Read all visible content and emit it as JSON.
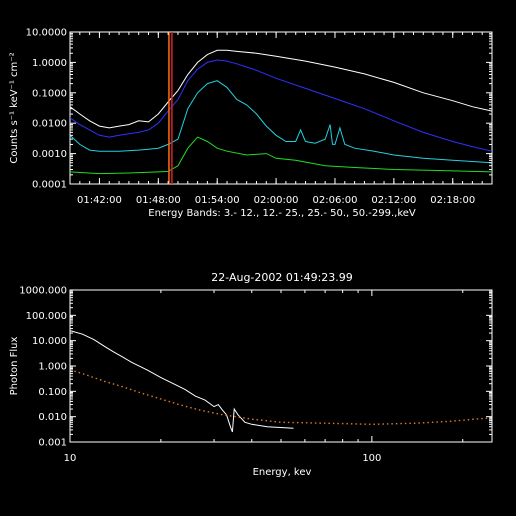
{
  "chart_data": [
    {
      "type": "line",
      "title": "",
      "xlabel": "Energy Bands:  3.- 12., 12.- 25., 25.- 50., 50.-299.,keV",
      "ylabel": "Counts s⁻¹ keV⁻¹ cm⁻²",
      "yscale": "log",
      "ylim": [
        0.0001,
        10
      ],
      "xlim": [
        "01:39:00",
        "02:22:00"
      ],
      "grid": false,
      "x_ticks": [
        "01:42:00",
        "01:48:00",
        "01:54:00",
        "02:00:00",
        "02:06:00",
        "02:12:00",
        "02:18:00"
      ],
      "y_ticks": [
        "0.0001",
        "0.0010",
        "0.0100",
        "0.1000",
        "1.0000",
        "10.0000"
      ],
      "markers": [
        {
          "time": "01:49:05",
          "color": "#ff6a1a"
        },
        {
          "time": "01:49:23",
          "color": "#e02020"
        }
      ],
      "series": [
        {
          "color": "#ffffff",
          "points": [
            [
              "01:39:00",
              0.035
            ],
            [
              "01:40:00",
              0.02
            ],
            [
              "01:41:00",
              0.012
            ],
            [
              "01:42:00",
              0.008
            ],
            [
              "01:43:00",
              0.007
            ],
            [
              "01:44:00",
              0.008
            ],
            [
              "01:45:00",
              0.009
            ],
            [
              "01:46:00",
              0.012
            ],
            [
              "01:47:00",
              0.011
            ],
            [
              "01:48:00",
              0.02
            ],
            [
              "01:49:00",
              0.05
            ],
            [
              "01:50:00",
              0.12
            ],
            [
              "01:51:00",
              0.4
            ],
            [
              "01:52:00",
              1.0
            ],
            [
              "01:53:00",
              1.8
            ],
            [
              "01:54:00",
              2.5
            ],
            [
              "01:55:00",
              2.5
            ],
            [
              "01:56:00",
              2.3
            ],
            [
              "01:58:00",
              2.0
            ],
            [
              "02:00:00",
              1.6
            ],
            [
              "02:03:00",
              1.1
            ],
            [
              "02:06:00",
              0.7
            ],
            [
              "02:09:00",
              0.42
            ],
            [
              "02:12:00",
              0.22
            ],
            [
              "02:15:00",
              0.1
            ],
            [
              "02:18:00",
              0.055
            ],
            [
              "02:20:00",
              0.035
            ],
            [
              "02:22:00",
              0.025
            ]
          ]
        },
        {
          "color": "#3030ff",
          "points": [
            [
              "01:39:00",
              0.015
            ],
            [
              "01:40:00",
              0.009
            ],
            [
              "01:41:00",
              0.006
            ],
            [
              "01:42:00",
              0.004
            ],
            [
              "01:43:00",
              0.0035
            ],
            [
              "01:44:00",
              0.004
            ],
            [
              "01:45:00",
              0.0045
            ],
            [
              "01:46:00",
              0.005
            ],
            [
              "01:47:00",
              0.006
            ],
            [
              "01:48:00",
              0.01
            ],
            [
              "01:49:00",
              0.025
            ],
            [
              "01:50:00",
              0.06
            ],
            [
              "01:51:00",
              0.25
            ],
            [
              "01:52:00",
              0.6
            ],
            [
              "01:53:00",
              1.0
            ],
            [
              "01:54:00",
              1.2
            ],
            [
              "01:55:00",
              1.1
            ],
            [
              "01:56:00",
              0.9
            ],
            [
              "01:58:00",
              0.55
            ],
            [
              "02:00:00",
              0.3
            ],
            [
              "02:03:00",
              0.14
            ],
            [
              "02:06:00",
              0.065
            ],
            [
              "02:09:00",
              0.03
            ],
            [
              "02:12:00",
              0.012
            ],
            [
              "02:15:00",
              0.005
            ],
            [
              "02:18:00",
              0.0025
            ],
            [
              "02:20:00",
              0.0017
            ],
            [
              "02:22:00",
              0.0012
            ]
          ]
        },
        {
          "color": "#22d0e0",
          "points": [
            [
              "01:39:00",
              0.004
            ],
            [
              "01:40:00",
              0.002
            ],
            [
              "01:41:00",
              0.0013
            ],
            [
              "01:42:00",
              0.0012
            ],
            [
              "01:44:00",
              0.0012
            ],
            [
              "01:46:00",
              0.0013
            ],
            [
              "01:47:00",
              0.0014
            ],
            [
              "01:48:00",
              0.0015
            ],
            [
              "01:49:00",
              0.002
            ],
            [
              "01:50:00",
              0.003
            ],
            [
              "01:51:00",
              0.03
            ],
            [
              "01:52:00",
              0.1
            ],
            [
              "01:53:00",
              0.2
            ],
            [
              "01:54:00",
              0.25
            ],
            [
              "01:55:00",
              0.15
            ],
            [
              "01:56:00",
              0.06
            ],
            [
              "01:57:00",
              0.04
            ],
            [
              "01:58:00",
              0.02
            ],
            [
              "01:59:00",
              0.008
            ],
            [
              "02:00:00",
              0.004
            ],
            [
              "02:01:00",
              0.0025
            ],
            [
              "02:02:00",
              0.0025
            ],
            [
              "02:02:30",
              0.006
            ],
            [
              "02:03:00",
              0.0025
            ],
            [
              "02:04:00",
              0.0022
            ],
            [
              "02:05:00",
              0.003
            ],
            [
              "02:05:30",
              0.009
            ],
            [
              "02:05:45",
              0.002
            ],
            [
              "02:06:00",
              0.002
            ],
            [
              "02:06:30",
              0.007
            ],
            [
              "02:07:00",
              0.002
            ],
            [
              "02:08:00",
              0.0015
            ],
            [
              "02:10:00",
              0.0012
            ],
            [
              "02:12:00",
              0.0009
            ],
            [
              "02:15:00",
              0.0007
            ],
            [
              "02:18:00",
              0.0006
            ],
            [
              "02:22:00",
              0.0005
            ]
          ]
        },
        {
          "color": "#22dd22",
          "points": [
            [
              "01:39:00",
              0.00025
            ],
            [
              "01:42:00",
              0.00022
            ],
            [
              "01:45:00",
              0.00023
            ],
            [
              "01:48:00",
              0.00025
            ],
            [
              "01:49:00",
              0.00026
            ],
            [
              "01:50:00",
              0.0004
            ],
            [
              "01:51:00",
              0.0015
            ],
            [
              "01:52:00",
              0.0035
            ],
            [
              "01:53:00",
              0.0025
            ],
            [
              "01:54:00",
              0.0015
            ],
            [
              "01:55:00",
              0.0012
            ],
            [
              "01:57:00",
              0.0009
            ],
            [
              "01:59:00",
              0.001
            ],
            [
              "02:00:00",
              0.0007
            ],
            [
              "02:02:00",
              0.0006
            ],
            [
              "02:05:00",
              0.0004
            ],
            [
              "02:08:00",
              0.00035
            ],
            [
              "02:12:00",
              0.0003
            ],
            [
              "02:16:00",
              0.00028
            ],
            [
              "02:22:00",
              0.00025
            ]
          ]
        }
      ]
    },
    {
      "type": "line",
      "title": "22-Aug-2002 01:49:23.99",
      "xlabel": "Energy, kev",
      "ylabel": "Photon Flux",
      "xscale": "log",
      "yscale": "log",
      "xlim": [
        10,
        250
      ],
      "ylim": [
        0.001,
        1000
      ],
      "grid": false,
      "x_ticks": [
        "10",
        "100"
      ],
      "y_ticks": [
        "0.001",
        "0.010",
        "0.100",
        "1.000",
        "10.000",
        "100.000",
        "1000.000"
      ],
      "series": [
        {
          "color": "#ffffff",
          "style": "solid",
          "points": [
            [
              10,
              25
            ],
            [
              11,
              18
            ],
            [
              12,
              11
            ],
            [
              13,
              6
            ],
            [
              14,
              3.5
            ],
            [
              15,
              2.2
            ],
            [
              16,
              1.4
            ],
            [
              18,
              0.7
            ],
            [
              20,
              0.35
            ],
            [
              22,
              0.2
            ],
            [
              24,
              0.12
            ],
            [
              26,
              0.065
            ],
            [
              28,
              0.045
            ],
            [
              30,
              0.025
            ],
            [
              31,
              0.03
            ],
            [
              32,
              0.018
            ],
            [
              33,
              0.012
            ],
            [
              34,
              0.004
            ],
            [
              34.5,
              0.0025
            ],
            [
              35,
              0.02
            ],
            [
              36,
              0.012
            ],
            [
              38,
              0.006
            ],
            [
              40,
              0.005
            ],
            [
              45,
              0.004
            ],
            [
              55,
              0.0035
            ]
          ]
        },
        {
          "color": "#e07a28",
          "style": "dotted",
          "points": [
            [
              10,
              0.7
            ],
            [
              11,
              0.5
            ],
            [
              12,
              0.35
            ],
            [
              13,
              0.25
            ],
            [
              15,
              0.15
            ],
            [
              17,
              0.09
            ],
            [
              20,
              0.05
            ],
            [
              23,
              0.03
            ],
            [
              27,
              0.018
            ],
            [
              32,
              0.012
            ],
            [
              40,
              0.008
            ],
            [
              50,
              0.006
            ],
            [
              70,
              0.0055
            ],
            [
              100,
              0.005
            ],
            [
              140,
              0.0055
            ],
            [
              180,
              0.0065
            ],
            [
              220,
              0.008
            ],
            [
              250,
              0.009
            ]
          ]
        }
      ]
    }
  ]
}
